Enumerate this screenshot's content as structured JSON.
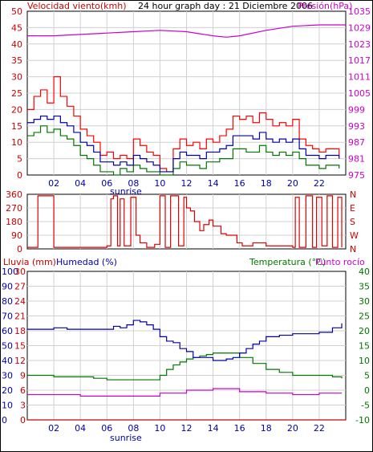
{
  "header": {
    "wind_label": "Velocidad viento(kmh)",
    "title": "24 hour graph day : 21 Diciembre 2006",
    "pressure_label": "Presión(hPa)"
  },
  "bottom_header": {
    "rain_label": "Lluvia (mm)",
    "humidity_label": "Humedad (%)",
    "temperature_label": "Temperatura (°C)",
    "dewpoint_label": "Punto rocío"
  },
  "sunrise_label": "sunrise",
  "colors": {
    "wind_gust": "#ff0000",
    "wind_avg": "#0000aa",
    "wind_low": "#007700",
    "pressure": "#cc00cc",
    "direction": "#dd0000",
    "humidity": "#0000aa",
    "temperature": "#007700",
    "dewpoint": "#cc00cc",
    "rain": "#cc0000",
    "grid": "#d0d0d0",
    "frame": "#000000"
  },
  "chart_data": [
    {
      "type": "line",
      "title": "24 hour graph day : 21 Diciembre 2006",
      "x_ticks": [
        "02",
        "04",
        "06",
        "08",
        "10",
        "12",
        "14",
        "16",
        "18",
        "20",
        "22"
      ],
      "x_range_hours": [
        0,
        24
      ],
      "y_left": {
        "label": "Velocidad viento(kmh)",
        "ticks": [
          0,
          5,
          10,
          15,
          20,
          25,
          30,
          35,
          40,
          45,
          50
        ],
        "range": [
          0,
          50
        ]
      },
      "y_right": {
        "label": "Presión(hPa)",
        "ticks": [
          975,
          981,
          987,
          993,
          999,
          1005,
          1011,
          1017,
          1023,
          1029,
          1035
        ],
        "range": [
          975,
          1035
        ]
      },
      "grid": true,
      "series": [
        {
          "name": "Velocidad viento(kmh)",
          "axis": "left",
          "role": "gust",
          "x": [
            0,
            0.5,
            1,
            1.5,
            2,
            2.5,
            3,
            3.5,
            4,
            4.5,
            5,
            5.5,
            6,
            6.5,
            7,
            7.5,
            8,
            8.5,
            9,
            9.5,
            10,
            10.5,
            11,
            11.5,
            12,
            12.5,
            13,
            13.5,
            14,
            14.5,
            15,
            15.5,
            16,
            16.5,
            17,
            17.5,
            18,
            18.5,
            19,
            19.5,
            20,
            20.5,
            21,
            21.5,
            22,
            22.5,
            23,
            23.5
          ],
          "values": [
            20,
            24,
            26,
            22,
            30,
            24,
            21,
            18,
            14,
            12,
            10,
            6,
            7,
            5,
            6,
            5,
            11,
            9,
            7,
            6,
            2,
            1,
            8,
            11,
            9,
            10,
            8,
            11,
            10,
            12,
            14,
            18,
            17,
            18,
            16,
            19,
            17,
            15,
            16,
            15,
            17,
            11,
            9,
            8,
            7,
            8,
            8,
            6
          ]
        },
        {
          "name": "",
          "axis": "left",
          "role": "average",
          "x": [
            0,
            0.5,
            1,
            1.5,
            2,
            2.5,
            3,
            3.5,
            4,
            4.5,
            5,
            5.5,
            6,
            6.5,
            7,
            7.5,
            8,
            8.5,
            9,
            9.5,
            10,
            10.5,
            11,
            11.5,
            12,
            12.5,
            13,
            13.5,
            14,
            14.5,
            15,
            15.5,
            16,
            16.5,
            17,
            17.5,
            18,
            18.5,
            19,
            19.5,
            20,
            20.5,
            21,
            21.5,
            22,
            22.5,
            23,
            23.5
          ],
          "values": [
            16,
            17,
            18,
            17,
            18,
            16,
            15,
            13,
            10,
            9,
            7,
            4,
            4,
            3,
            4,
            3,
            6,
            5,
            4,
            3,
            1,
            1,
            5,
            7,
            6,
            6,
            5,
            7,
            7,
            8,
            9,
            12,
            12,
            12,
            11,
            13,
            11,
            10,
            11,
            10,
            11,
            8,
            6,
            6,
            5,
            6,
            6,
            5
          ]
        },
        {
          "name": "",
          "axis": "left",
          "role": "low",
          "x": [
            0,
            0.5,
            1,
            1.5,
            2,
            2.5,
            3,
            3.5,
            4,
            4.5,
            5,
            5.5,
            6,
            6.5,
            7,
            7.5,
            8,
            8.5,
            9,
            9.5,
            10,
            10.5,
            11,
            11.5,
            12,
            12.5,
            13,
            13.5,
            14,
            14.5,
            15,
            15.5,
            16,
            16.5,
            17,
            17.5,
            18,
            18.5,
            19,
            19.5,
            20,
            20.5,
            21,
            21.5,
            22,
            22.5,
            23,
            23.5
          ],
          "values": [
            12,
            13,
            15,
            13,
            14,
            12,
            11,
            9,
            6,
            5,
            3,
            1,
            1,
            0,
            2,
            1,
            3,
            2,
            1,
            1,
            0,
            0,
            2,
            4,
            3,
            3,
            2,
            4,
            4,
            5,
            5,
            8,
            8,
            7,
            7,
            9,
            7,
            6,
            7,
            6,
            7,
            5,
            3,
            3,
            2,
            3,
            3,
            2
          ]
        },
        {
          "name": "Presión(hPa)",
          "axis": "right",
          "x": [
            0,
            2,
            4,
            6,
            8,
            10,
            12,
            14,
            15,
            16,
            18,
            20,
            22,
            24
          ],
          "values": [
            1026,
            1026,
            1026.5,
            1027,
            1027.5,
            1028,
            1027.5,
            1026,
            1025.5,
            1026,
            1028,
            1029.5,
            1030,
            1030
          ]
        }
      ]
    },
    {
      "type": "line",
      "title": "",
      "x_range_hours": [
        0,
        24
      ],
      "y_left": {
        "ticks": [
          0,
          90,
          180,
          270,
          360
        ],
        "range": [
          0,
          360
        ]
      },
      "y_right": {
        "ticks": [
          "N",
          "W",
          "S",
          "E",
          "N"
        ]
      },
      "grid": true,
      "series": [
        {
          "name": "",
          "axis": "left",
          "x": [
            0,
            0.2,
            0.8,
            1.3,
            1.5,
            2,
            3,
            4,
            5,
            5.5,
            6,
            6.3,
            6.5,
            6.8,
            7,
            7.3,
            7.8,
            8.2,
            8.5,
            9,
            9.6,
            10,
            10.4,
            10.8,
            11.4,
            11.8,
            12,
            12.3,
            12.6,
            13,
            13.3,
            13.7,
            14,
            14.6,
            15,
            15.8,
            16.2,
            17,
            18,
            19,
            20,
            20.2,
            20.5,
            21,
            21.5,
            21.8,
            22.2,
            22.6,
            23,
            23.4,
            23.7
          ],
          "values": [
            10,
            10,
            350,
            350,
            350,
            10,
            10,
            10,
            10,
            10,
            20,
            330,
            350,
            20,
            330,
            20,
            340,
            90,
            40,
            10,
            30,
            350,
            10,
            350,
            20,
            340,
            270,
            250,
            180,
            120,
            160,
            190,
            150,
            100,
            90,
            40,
            20,
            40,
            20,
            20,
            10,
            340,
            10,
            350,
            10,
            340,
            20,
            350,
            10,
            340,
            10
          ]
        }
      ]
    },
    {
      "type": "line",
      "title": "",
      "x_ticks": [
        "02",
        "04",
        "06",
        "08",
        "10",
        "12",
        "14",
        "16",
        "18",
        "20",
        "22"
      ],
      "x_range_hours": [
        0,
        24
      ],
      "y_left_outer": {
        "label": "Lluvia (mm)",
        "ticks": [
          0,
          10,
          20,
          30,
          40,
          50,
          60,
          70,
          80,
          90,
          100
        ],
        "range": [
          0,
          100
        ]
      },
      "y_left_inner": {
        "label": "Humedad (%)",
        "ticks": [
          0,
          3,
          6,
          9,
          12,
          15,
          18,
          21,
          24,
          27,
          30
        ],
        "range": [
          0,
          30
        ]
      },
      "y_right": {
        "label": "Temperatura (°C)",
        "ticks": [
          -10,
          -5,
          0,
          5,
          10,
          15,
          20,
          25,
          30,
          35,
          40
        ],
        "range": [
          -10,
          40
        ]
      },
      "grid": true,
      "series": [
        {
          "name": "Humedad (%)",
          "axis": "left_outer",
          "x": [
            0,
            1,
            2,
            3,
            4,
            5,
            6,
            6.5,
            7,
            7.5,
            8,
            8.5,
            9,
            9.5,
            10,
            10.5,
            11,
            11.5,
            12,
            12.5,
            13,
            14,
            15,
            15.5,
            16,
            16.5,
            17,
            17.5,
            18,
            19,
            20,
            21,
            22,
            23,
            23.7
          ],
          "values": [
            61,
            61,
            62,
            61,
            61,
            61,
            61,
            63,
            62,
            64,
            67,
            66,
            64,
            61,
            56,
            53,
            52,
            48,
            46,
            42,
            42,
            40,
            41,
            42,
            45,
            48,
            51,
            53,
            56,
            57,
            58,
            58,
            59,
            62,
            65
          ]
        },
        {
          "name": "Temperatura (°C)",
          "axis": "right",
          "x": [
            0,
            1,
            2,
            3,
            4,
            5,
            6,
            7,
            8,
            9,
            10,
            10.5,
            11,
            11.5,
            12,
            12.5,
            13,
            13.5,
            14,
            15,
            16,
            17,
            18,
            19,
            20,
            21,
            22,
            23,
            23.7
          ],
          "values": [
            5,
            5,
            4.5,
            4.5,
            4.5,
            4,
            3.5,
            3.5,
            3.5,
            3.5,
            5,
            7,
            8.5,
            9.5,
            10.5,
            11,
            11.5,
            12,
            12.5,
            12.5,
            11,
            9,
            7,
            6,
            5,
            5,
            5,
            4.5,
            4
          ]
        },
        {
          "name": "Punto rocío",
          "axis": "right",
          "x": [
            0,
            2,
            4,
            6,
            8,
            10,
            12,
            14,
            15,
            16,
            18,
            20,
            22,
            23.7
          ],
          "values": [
            -1.5,
            -1.5,
            -2,
            -2,
            -2,
            -1,
            0,
            0.5,
            0.5,
            -0.5,
            -1,
            -1.5,
            -1,
            -1
          ]
        },
        {
          "name": "Lluvia (mm)",
          "axis": "left_outer",
          "x": [
            0,
            24
          ],
          "values": [
            0,
            0
          ]
        }
      ]
    }
  ]
}
